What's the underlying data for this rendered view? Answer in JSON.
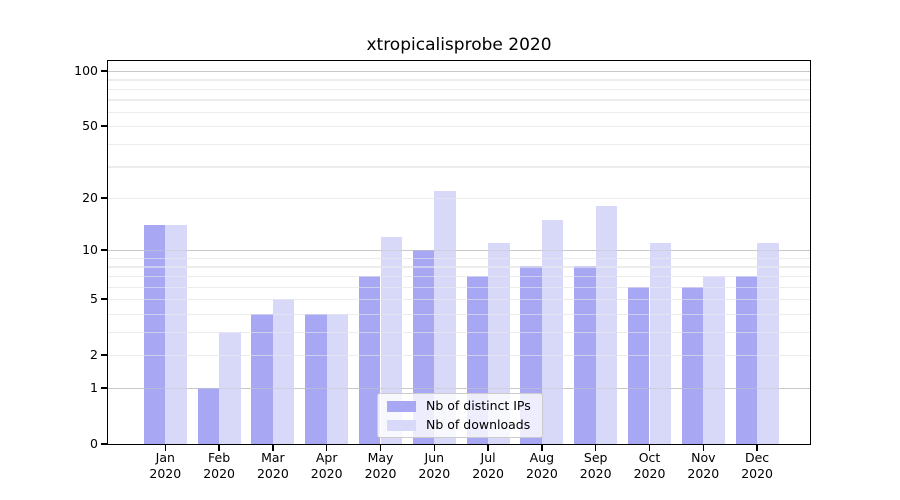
{
  "chart_data": {
    "type": "bar",
    "title": "xtropicalisprobe 2020",
    "categories": [
      "Jan 2020",
      "Feb 2020",
      "Mar 2020",
      "Apr 2020",
      "May 2020",
      "Jun 2020",
      "Jul 2020",
      "Aug 2020",
      "Sep 2020",
      "Oct 2020",
      "Nov 2020",
      "Dec 2020"
    ],
    "series": [
      {
        "name": "Nb of distinct IPs",
        "color": "#a7a7f3",
        "values": [
          14,
          1,
          4,
          4,
          7,
          10,
          7,
          8,
          8,
          6,
          6,
          7
        ]
      },
      {
        "name": "Nb of downloads",
        "color": "#d8d8f9",
        "values": [
          14,
          3,
          5,
          4,
          12,
          22,
          11,
          15,
          18,
          11,
          7,
          11
        ]
      }
    ],
    "y_axis": {
      "scale": "log1p",
      "tick_values": [
        0,
        1,
        2,
        5,
        10,
        20,
        50,
        100
      ],
      "tick_labels": [
        "0",
        "1",
        "2",
        "5",
        "10",
        "20",
        "50",
        "100"
      ],
      "limit_top": 113,
      "major_gridlines": [
        1,
        10,
        100
      ],
      "minor_gridlines": [
        2,
        3,
        4,
        5,
        6,
        7,
        8,
        9,
        20,
        30,
        40,
        50,
        60,
        70,
        80,
        90
      ]
    },
    "legend": {
      "position": "lower center",
      "entries": [
        "Nb of distinct IPs",
        "Nb of downloads"
      ]
    },
    "colors": {
      "distinct_ips": "#a7a7f3",
      "downloads": "#d8d8f9",
      "grid_major": "#c8c8c8",
      "grid_minor": "#ececec",
      "axis": "#000000",
      "background": "#ffffff"
    },
    "ylabel": "",
    "xlabel": ""
  }
}
